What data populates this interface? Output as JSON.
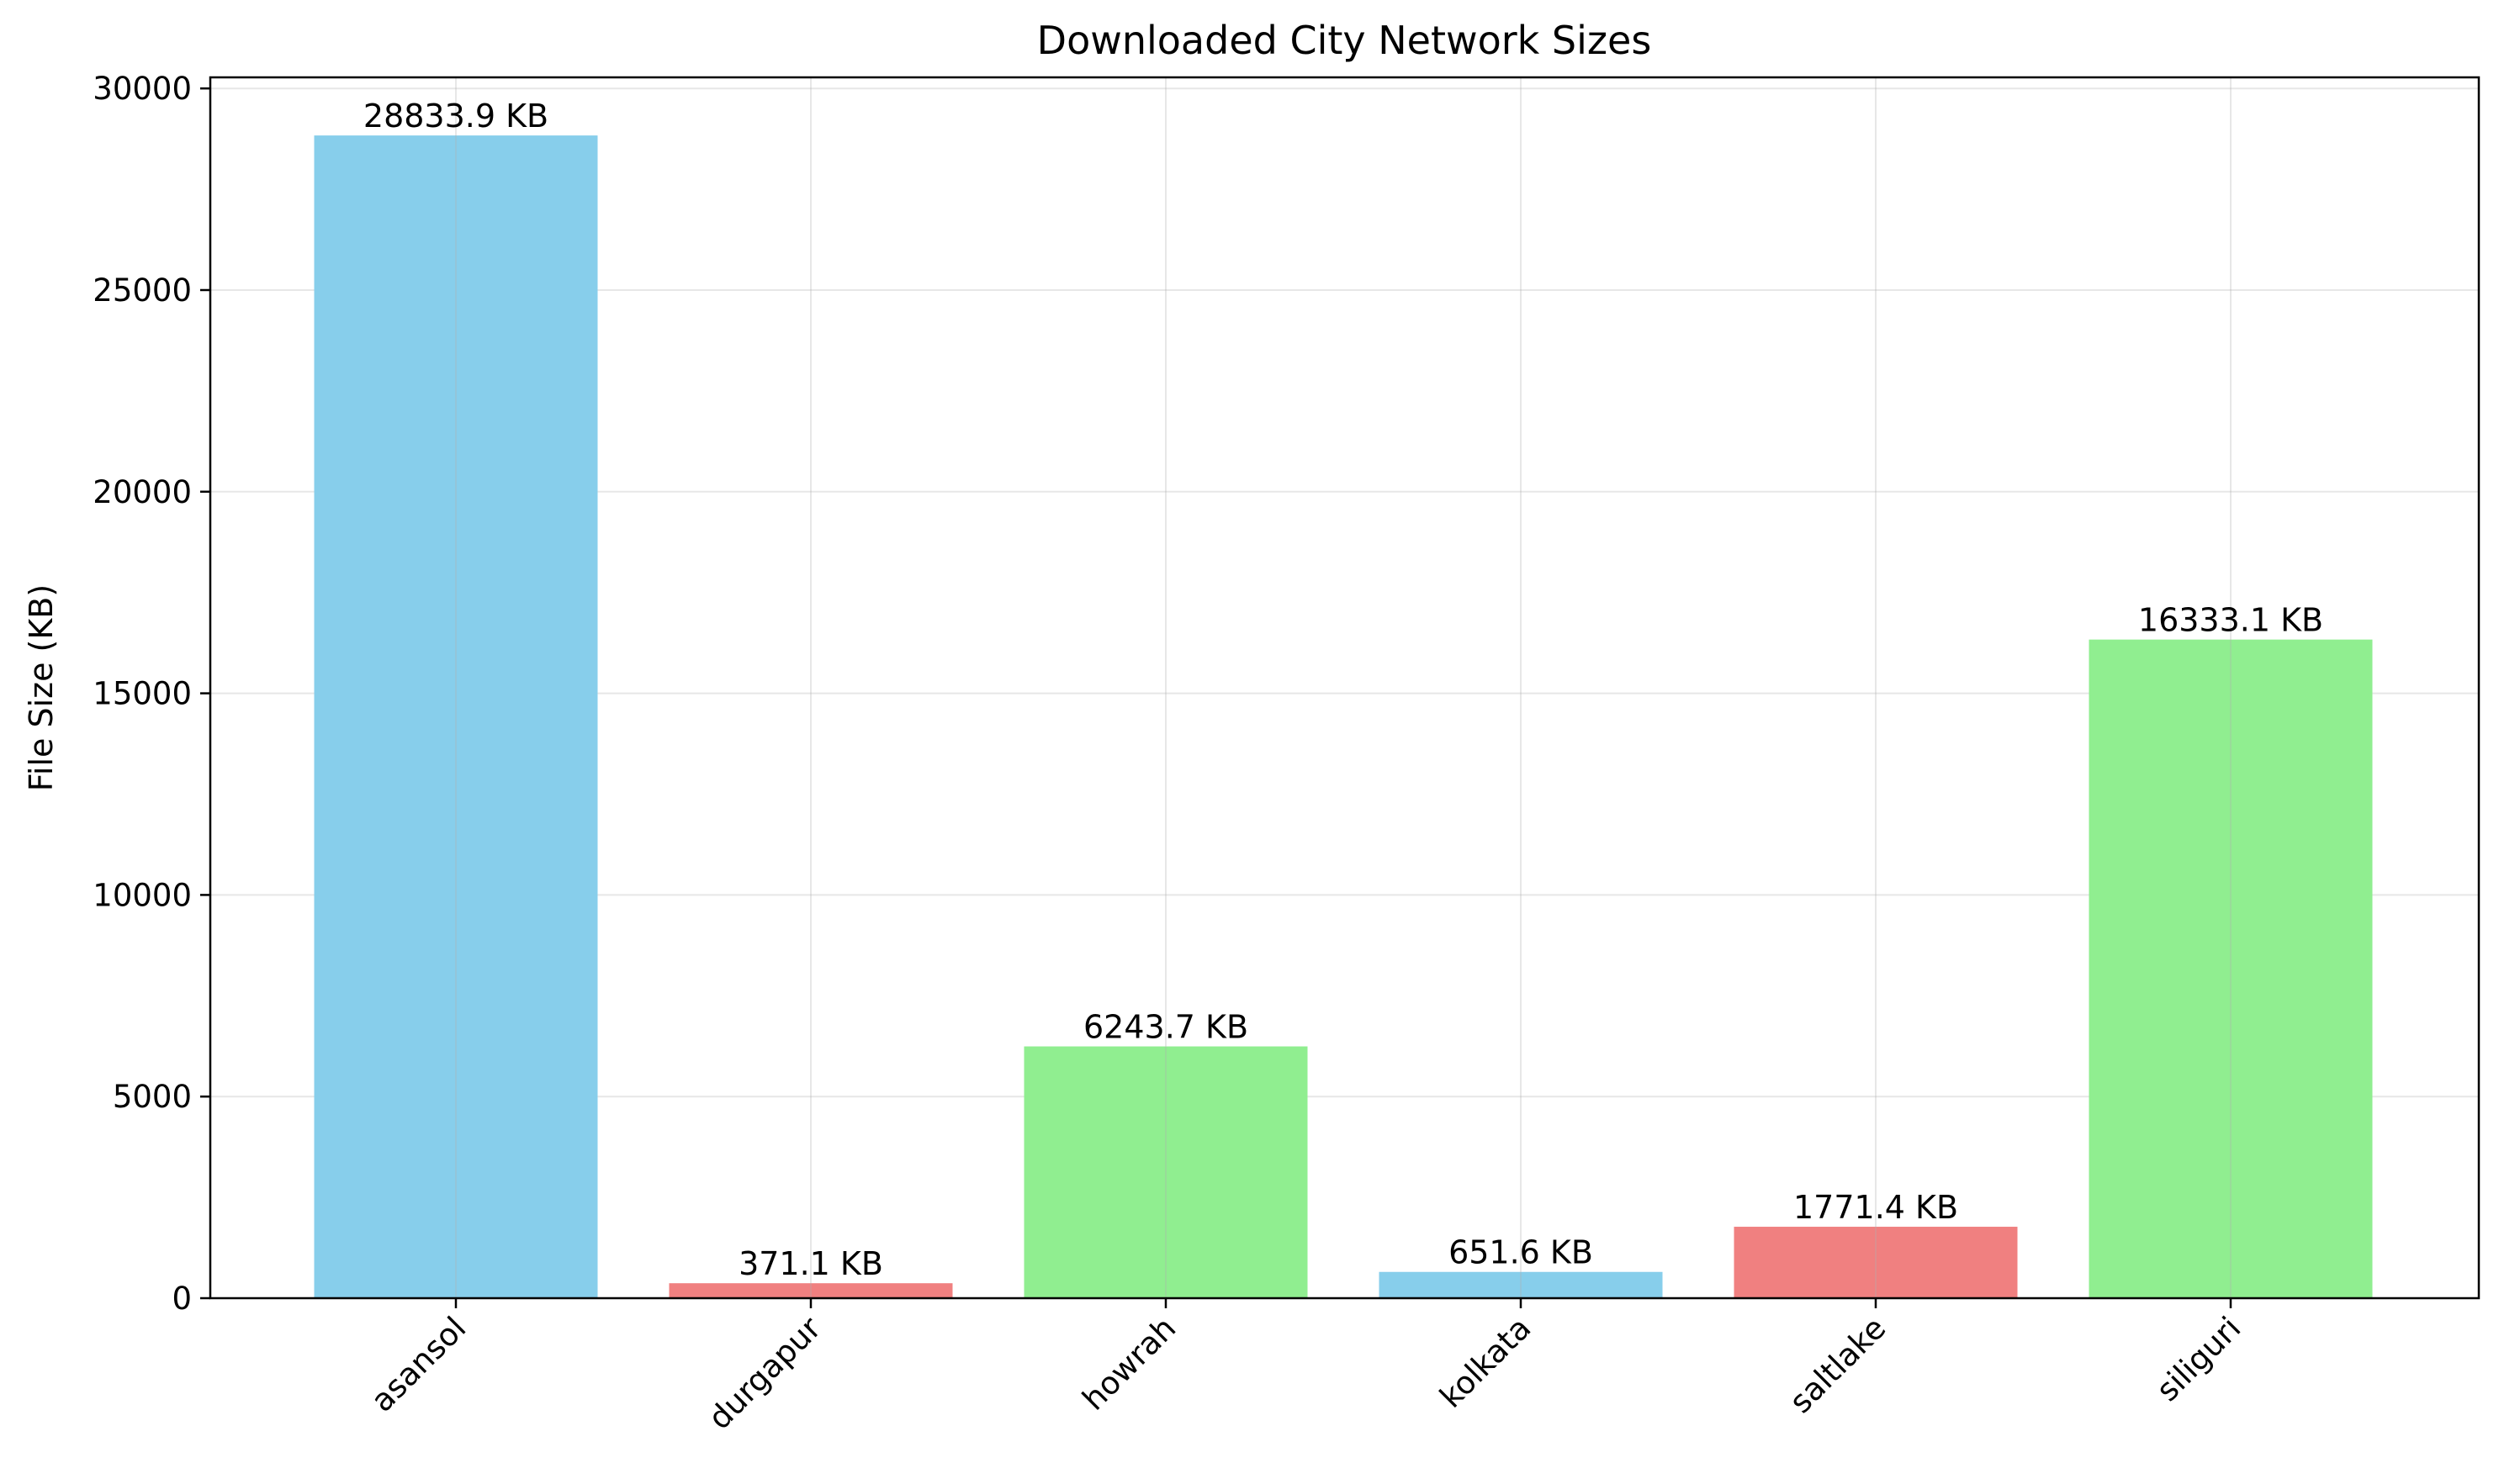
{
  "chart_data": {
    "type": "bar",
    "title": "Downloaded City Network Sizes",
    "xlabel": "",
    "ylabel": "File Size (KB)",
    "categories": [
      "asansol",
      "durgapur",
      "howrah",
      "kolkata",
      "saltlake",
      "siliguri"
    ],
    "values": [
      28833.9,
      371.1,
      6243.7,
      651.6,
      1771.4,
      16333.1
    ],
    "data_labels": [
      "28833.9 KB",
      "371.1 KB",
      "6243.7 KB",
      "651.6 KB",
      "1771.4 KB",
      "16333.1 KB"
    ],
    "bar_colors": [
      "#87CEEB",
      "#F08080",
      "#90EE90",
      "#87CEEB",
      "#F08080",
      "#90EE90"
    ],
    "ylim": [
      0,
      30275
    ],
    "yticks": [
      0,
      5000,
      10000,
      15000,
      20000,
      25000,
      30000
    ],
    "ytick_labels": [
      "0",
      "5000",
      "10000",
      "15000",
      "20000",
      "25000",
      "30000"
    ],
    "grid": true,
    "xtick_rotation": 45
  }
}
